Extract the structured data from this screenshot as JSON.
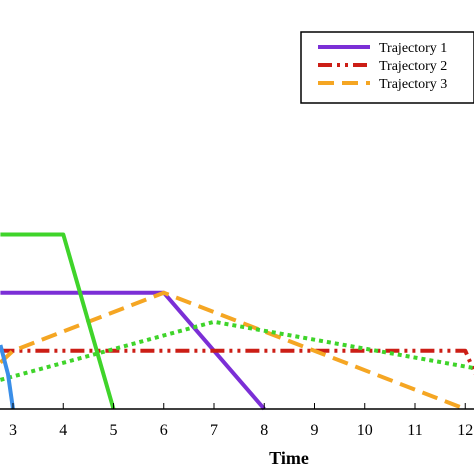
{
  "chart_data": {
    "type": "line",
    "xlabel": "Time",
    "ylabel": "",
    "title": "",
    "xlim": [
      2.75,
      12.2
    ],
    "ylim": [
      0,
      3.0
    ],
    "x_ticks": [
      3,
      4,
      5,
      6,
      7,
      8,
      9,
      10,
      11,
      12
    ],
    "x_tick_labels": [
      "3",
      "4",
      "5",
      "6",
      "7",
      "8",
      "9",
      "10",
      "11",
      "12"
    ],
    "grid": false,
    "legend_position": "top-right",
    "series": [
      {
        "name": "Trajectory 1",
        "color": "#7b2fd6",
        "style": "solid",
        "x": [
          2.75,
          6,
          8
        ],
        "y": [
          1.0,
          1.0,
          0
        ]
      },
      {
        "name": "Trajectory 2",
        "color": "#cc1e16",
        "style": "dashdot",
        "x": [
          2.75,
          12,
          12.2
        ],
        "y": [
          0.5,
          0.5,
          0.3
        ]
      },
      {
        "name": "Trajectory 3",
        "color": "#f5a623",
        "style": "dashed",
        "x": [
          2.75,
          3,
          6,
          12
        ],
        "y": [
          0.4,
          0.5,
          1.0,
          0
        ]
      },
      {
        "name": "",
        "color": "#3fd42a",
        "style": "solid",
        "x": [
          2.75,
          4,
          5
        ],
        "y": [
          1.5,
          1.5,
          0
        ]
      },
      {
        "name": "",
        "color": "#3fd42a",
        "style": "dotted",
        "x": [
          2.75,
          7,
          12.2
        ],
        "y": [
          0.25,
          0.75,
          0.35
        ]
      },
      {
        "name": "",
        "color": "#3a8ee8",
        "style": "solid",
        "x": [
          2.75,
          2.9,
          3.0
        ],
        "y": [
          0.55,
          0.3,
          0
        ]
      }
    ]
  }
}
